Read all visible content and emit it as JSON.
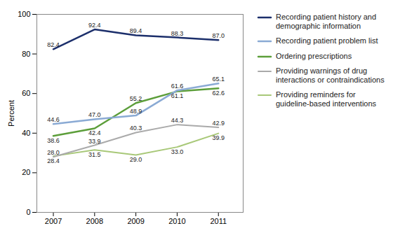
{
  "chart_data": {
    "type": "line",
    "x": [
      2007,
      2008,
      2009,
      2010,
      2011
    ],
    "series": [
      {
        "name": "Recording patient history and\ndemographic information",
        "color": "#1c2f6b",
        "values": [
          82.4,
          92.4,
          89.4,
          88.3,
          87.0
        ],
        "value_labels": [
          "82.4",
          "92.4",
          "89.4",
          "88.3",
          "87.0"
        ]
      },
      {
        "name": "Recording patient problem list",
        "color": "#8aaad4",
        "values": [
          44.6,
          47.0,
          48.9,
          61.6,
          65.1
        ],
        "value_labels": [
          "44.6",
          "47.0",
          "48.9",
          "61.6",
          "65.1"
        ]
      },
      {
        "name": "Ordering prescriptions",
        "color": "#5c9e3a",
        "values": [
          38.6,
          42.4,
          55.2,
          61.1,
          62.6
        ],
        "value_labels": [
          "38.6",
          "42.4",
          "55.2",
          "61.1",
          "62.6"
        ]
      },
      {
        "name": "Providing warnings of drug\ninteractions or contraindications",
        "color": "#aaaaaa",
        "values": [
          28.0,
          33.9,
          40.3,
          44.3,
          42.9
        ],
        "value_labels": [
          "28.0",
          "33.9",
          "40.3",
          "44.3",
          "42.9"
        ]
      },
      {
        "name": "Providing reminders for\nguideline-based interventions",
        "color": "#a8c878",
        "values": [
          28.4,
          31.5,
          29.0,
          33.0,
          39.9
        ],
        "value_labels": [
          "28.4",
          "31.5",
          "29.0",
          "33.0",
          "39.9"
        ]
      }
    ],
    "ylabel": "Percent",
    "xlim": [
      2006.6,
      2011.6
    ],
    "xticks": [
      2007,
      2008,
      2009,
      2010,
      2011
    ],
    "ylim": [
      0,
      100
    ],
    "yticks": [
      0,
      20,
      40,
      60,
      80,
      100
    ],
    "data_labels": true,
    "legend": "right"
  }
}
